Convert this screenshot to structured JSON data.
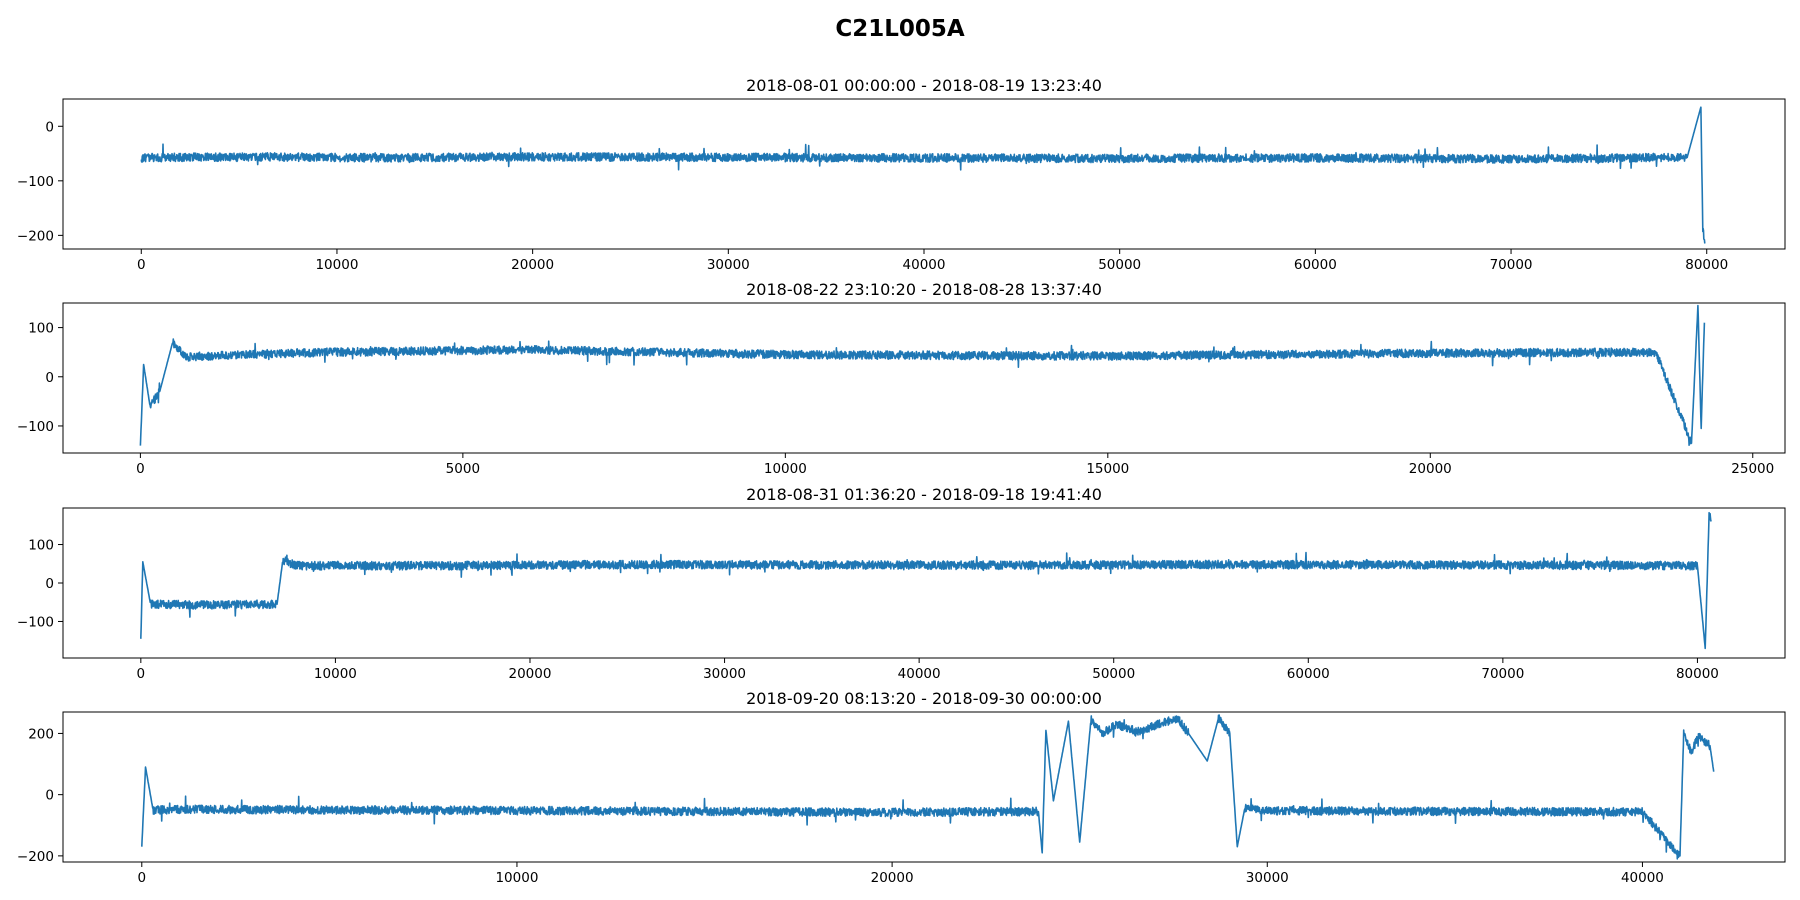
{
  "figure_title": "C21L005A",
  "colors": {
    "series": "#1f77b4",
    "axes": "#000000",
    "background": "#ffffff"
  },
  "chart_data": [
    {
      "type": "line",
      "title": "2018-08-01 00:00:00 - 2018-08-19 13:23:40",
      "xlabel": "",
      "ylabel": "",
      "xlim": [
        -4000,
        84000
      ],
      "ylim": [
        -225,
        50
      ],
      "xticks": [
        0,
        10000,
        20000,
        30000,
        40000,
        50000,
        60000,
        70000,
        80000
      ],
      "yticks": [
        0,
        -100,
        -200
      ],
      "grid": false,
      "series": [
        {
          "x": [
            0,
            2000,
            6000,
            12000,
            20000,
            30000,
            40000,
            50000,
            60000,
            70000,
            79000,
            79700,
            79800,
            79900
          ],
          "y": [
            -58,
            -57,
            -56,
            -58,
            -56,
            -57,
            -58,
            -59,
            -58,
            -60,
            -57,
            35,
            -190,
            -215
          ]
        }
      ]
    },
    {
      "type": "line",
      "title": "2018-08-22 23:10:20 - 2018-08-28 13:37:40",
      "xlabel": "",
      "ylabel": "",
      "xlim": [
        -1200,
        25500
      ],
      "ylim": [
        -155,
        150
      ],
      "xticks": [
        0,
        5000,
        10000,
        15000,
        20000,
        25000
      ],
      "yticks": [
        100,
        0,
        -100
      ],
      "grid": false,
      "series": [
        {
          "x": [
            0,
            50,
            150,
            300,
            500,
            700,
            1500,
            3000,
            6000,
            10000,
            15000,
            20000,
            23500,
            24050,
            24150,
            24200,
            24250
          ],
          "y": [
            -140,
            25,
            -60,
            -30,
            70,
            40,
            45,
            50,
            55,
            45,
            42,
            48,
            50,
            -135,
            145,
            -105,
            110
          ]
        }
      ]
    },
    {
      "type": "line",
      "title": "2018-08-31 01:36:20 - 2018-09-18 19:41:40",
      "xlabel": "",
      "ylabel": "",
      "xlim": [
        -4000,
        84500
      ],
      "ylim": [
        -195,
        195
      ],
      "xticks": [
        0,
        10000,
        20000,
        30000,
        40000,
        50000,
        60000,
        70000,
        80000
      ],
      "yticks": [
        100,
        0,
        -100
      ],
      "grid": false,
      "series": [
        {
          "x": [
            0,
            100,
            500,
            3000,
            7000,
            7300,
            8000,
            15000,
            25000,
            35000,
            45000,
            55000,
            65000,
            75000,
            80000,
            80400,
            80600,
            80700
          ],
          "y": [
            -145,
            55,
            -55,
            -57,
            -55,
            60,
            45,
            45,
            48,
            47,
            46,
            48,
            47,
            46,
            45,
            -170,
            180,
            160
          ]
        }
      ]
    },
    {
      "type": "line",
      "title": "2018-09-20 08:13:20 - 2018-09-30 00:00:00",
      "xlabel": "",
      "ylabel": "",
      "xlim": [
        -2100,
        43800
      ],
      "ylim": [
        -220,
        270
      ],
      "xticks": [
        0,
        10000,
        20000,
        30000,
        40000
      ],
      "yticks": [
        200,
        0,
        -200
      ],
      "grid": false,
      "series": [
        {
          "x": [
            0,
            100,
            300,
            1000,
            5000,
            10000,
            15000,
            20000,
            23900,
            24000,
            24100,
            24300,
            24700,
            25000,
            25300,
            25600,
            26000,
            26500,
            27000,
            27600,
            27900,
            28400,
            28700,
            29000,
            29200,
            29400,
            30000,
            35000,
            40000,
            41000,
            41100,
            41300,
            41500,
            41800,
            41900
          ],
          "y": [
            -170,
            90,
            -50,
            -48,
            -50,
            -52,
            -55,
            -58,
            -55,
            -190,
            210,
            -20,
            240,
            -155,
            245,
            200,
            230,
            205,
            225,
            250,
            200,
            110,
            250,
            200,
            -170,
            -45,
            -52,
            -55,
            -56,
            -200,
            200,
            140,
            190,
            160,
            75
          ]
        }
      ]
    }
  ]
}
